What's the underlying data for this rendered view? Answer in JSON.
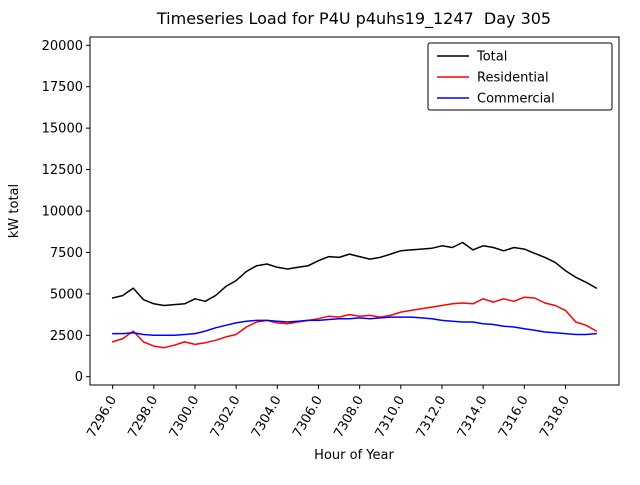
{
  "chart_data": {
    "type": "line",
    "title": "Timeseries Load for P4U p4uhs19_1247  Day 305",
    "xlabel": "Hour of Year",
    "ylabel": "kW total",
    "xlim": [
      7294.9,
      7320.6
    ],
    "ylim": [
      -500,
      20500
    ],
    "grid": false,
    "legend_position": "upper right",
    "x_tick_values": [
      7296,
      7298,
      7300,
      7302,
      7304,
      7306,
      7308,
      7310,
      7312,
      7314,
      7316,
      7318
    ],
    "x_tick_labels": [
      "7296.0",
      "7298.0",
      "7300.0",
      "7302.0",
      "7304.0",
      "7306.0",
      "7308.0",
      "7310.0",
      "7312.0",
      "7314.0",
      "7316.0",
      "7318.0"
    ],
    "y_tick_values": [
      0,
      2500,
      5000,
      7500,
      10000,
      12500,
      15000,
      17500,
      20000
    ],
    "y_tick_labels": [
      "0",
      "2500",
      "5000",
      "7500",
      "10000",
      "12500",
      "15000",
      "17500",
      "20000"
    ],
    "x": [
      7296.0,
      7296.5,
      7297.0,
      7297.5,
      7298.0,
      7298.5,
      7299.0,
      7299.5,
      7300.0,
      7300.5,
      7301.0,
      7301.5,
      7302.0,
      7302.5,
      7303.0,
      7303.5,
      7304.0,
      7304.5,
      7305.0,
      7305.5,
      7306.0,
      7306.5,
      7307.0,
      7307.5,
      7308.0,
      7308.5,
      7309.0,
      7309.5,
      7310.0,
      7310.5,
      7311.0,
      7311.5,
      7312.0,
      7312.5,
      7313.0,
      7313.5,
      7314.0,
      7314.5,
      7315.0,
      7315.5,
      7316.0,
      7316.5,
      7317.0,
      7317.5,
      7318.0,
      7318.5,
      7319.0,
      7319.5
    ],
    "series": [
      {
        "name": "Total",
        "color": "#000000",
        "values": [
          4750,
          4900,
          5350,
          4650,
          4400,
          4300,
          4350,
          4400,
          4700,
          4550,
          4900,
          5450,
          5800,
          6350,
          6700,
          6800,
          6600,
          6500,
          6600,
          6700,
          7000,
          7250,
          7200,
          7400,
          7250,
          7100,
          7200,
          7400,
          7600,
          7650,
          7700,
          7750,
          7900,
          7800,
          8100,
          7650,
          7900,
          7800,
          7600,
          7800,
          7700,
          7450,
          7200,
          6900,
          6400,
          6000,
          5700,
          5350
        ]
      },
      {
        "name": "Residential",
        "color": "#ff0000",
        "values": [
          2100,
          2300,
          2750,
          2100,
          1850,
          1750,
          1900,
          2100,
          1950,
          2050,
          2200,
          2400,
          2550,
          3000,
          3300,
          3400,
          3250,
          3200,
          3300,
          3400,
          3500,
          3650,
          3600,
          3750,
          3650,
          3700,
          3600,
          3700,
          3900,
          4000,
          4100,
          4200,
          4300,
          4400,
          4450,
          4400,
          4700,
          4500,
          4700,
          4550,
          4800,
          4750,
          4450,
          4300,
          4000,
          3300,
          3100,
          2750
        ]
      },
      {
        "name": "Commercial",
        "color": "#0000ff",
        "values": [
          2600,
          2600,
          2650,
          2550,
          2500,
          2500,
          2500,
          2550,
          2600,
          2750,
          2950,
          3100,
          3250,
          3350,
          3400,
          3400,
          3350,
          3300,
          3350,
          3400,
          3400,
          3450,
          3500,
          3500,
          3550,
          3500,
          3550,
          3600,
          3600,
          3600,
          3550,
          3500,
          3400,
          3350,
          3300,
          3300,
          3200,
          3150,
          3050,
          3000,
          2900,
          2800,
          2700,
          2650,
          2600,
          2550,
          2550,
          2600
        ]
      }
    ]
  }
}
